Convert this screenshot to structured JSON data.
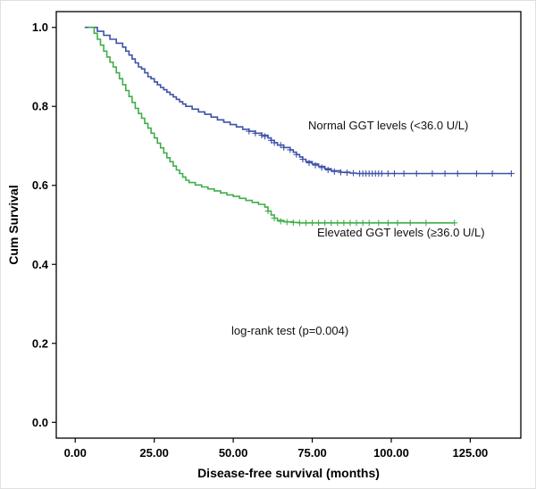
{
  "chart_data": {
    "type": "line",
    "subtype": "kaplan_meier_step",
    "title": "",
    "xlabel": "Disease-free survival (months)",
    "ylabel": "Cum Survival",
    "annotation": "log-rank test (p=0.004)",
    "xlim": [
      0,
      140
    ],
    "ylim": [
      0.0,
      1.0
    ],
    "grid": false,
    "legend_position": "inline-labels",
    "xticks": [
      0,
      25,
      50,
      75,
      100,
      125
    ],
    "xtick_labels": [
      "0.00",
      "25.00",
      "50.00",
      "75.00",
      "100.00",
      "125.00"
    ],
    "yticks": [
      0.0,
      0.2,
      0.4,
      0.6,
      0.8,
      1.0
    ],
    "ytick_labels": [
      "0.0",
      "0.2",
      "0.4",
      "0.6",
      "0.8",
      "1.0"
    ],
    "series": [
      {
        "id": "normal-ggt",
        "name": "Normal GGT levels (<36.0 U/L)",
        "color": "#3c52a8",
        "steps": [
          [
            3,
            1.0
          ],
          [
            7,
            0.99
          ],
          [
            9,
            0.98
          ],
          [
            11,
            0.97
          ],
          [
            13,
            0.96
          ],
          [
            15,
            0.95
          ],
          [
            16,
            0.94
          ],
          [
            17,
            0.93
          ],
          [
            18,
            0.92
          ],
          [
            19,
            0.91
          ],
          [
            20,
            0.9
          ],
          [
            21,
            0.895
          ],
          [
            22,
            0.885
          ],
          [
            23,
            0.875
          ],
          [
            24,
            0.87
          ],
          [
            25,
            0.862
          ],
          [
            26,
            0.855
          ],
          [
            27,
            0.848
          ],
          [
            28,
            0.842
          ],
          [
            29,
            0.836
          ],
          [
            30,
            0.83
          ],
          [
            31,
            0.824
          ],
          [
            32,
            0.818
          ],
          [
            33,
            0.812
          ],
          [
            34,
            0.806
          ],
          [
            35,
            0.8
          ],
          [
            37,
            0.793
          ],
          [
            39,
            0.786
          ],
          [
            41,
            0.78
          ],
          [
            43,
            0.773
          ],
          [
            45,
            0.766
          ],
          [
            47,
            0.76
          ],
          [
            49,
            0.754
          ],
          [
            51,
            0.748
          ],
          [
            53,
            0.742
          ],
          [
            55,
            0.737
          ],
          [
            57,
            0.732
          ],
          [
            59,
            0.727
          ],
          [
            61,
            0.72
          ],
          [
            62,
            0.714
          ],
          [
            63,
            0.708
          ],
          [
            64,
            0.702
          ],
          [
            66,
            0.696
          ],
          [
            68,
            0.69
          ],
          [
            69,
            0.684
          ],
          [
            70,
            0.678
          ],
          [
            71,
            0.672
          ],
          [
            72,
            0.666
          ],
          [
            73,
            0.66
          ],
          [
            75,
            0.654
          ],
          [
            77,
            0.648
          ],
          [
            79,
            0.642
          ],
          [
            81,
            0.637
          ],
          [
            84,
            0.633
          ],
          [
            87,
            0.631
          ],
          [
            89,
            0.63
          ],
          [
            138,
            0.63
          ]
        ],
        "censors": [
          [
            55,
            0.737
          ],
          [
            57,
            0.732
          ],
          [
            59,
            0.727
          ],
          [
            60,
            0.724
          ],
          [
            62,
            0.714
          ],
          [
            63,
            0.708
          ],
          [
            65,
            0.702
          ],
          [
            66,
            0.696
          ],
          [
            68,
            0.69
          ],
          [
            70,
            0.678
          ],
          [
            72,
            0.666
          ],
          [
            74,
            0.657
          ],
          [
            76,
            0.651
          ],
          [
            78,
            0.645
          ],
          [
            80,
            0.639
          ],
          [
            82,
            0.635
          ],
          [
            84,
            0.633
          ],
          [
            86,
            0.632
          ],
          [
            88,
            0.631
          ],
          [
            90,
            0.63
          ],
          [
            91,
            0.63
          ],
          [
            92,
            0.63
          ],
          [
            93,
            0.63
          ],
          [
            94,
            0.63
          ],
          [
            95,
            0.63
          ],
          [
            96,
            0.63
          ],
          [
            97,
            0.63
          ],
          [
            99,
            0.63
          ],
          [
            101,
            0.63
          ],
          [
            104,
            0.63
          ],
          [
            108,
            0.63
          ],
          [
            113,
            0.63
          ],
          [
            117,
            0.63
          ],
          [
            121,
            0.63
          ],
          [
            127,
            0.63
          ],
          [
            132,
            0.63
          ],
          [
            138,
            0.63
          ]
        ]
      },
      {
        "id": "elevated-ggt",
        "name": "Elevated GGT levels (≥36.0 U/L)",
        "color": "#3fae49",
        "steps": [
          [
            4,
            1.0
          ],
          [
            6,
            0.985
          ],
          [
            7,
            0.97
          ],
          [
            8,
            0.955
          ],
          [
            9,
            0.94
          ],
          [
            10,
            0.925
          ],
          [
            11,
            0.912
          ],
          [
            12,
            0.9
          ],
          [
            13,
            0.885
          ],
          [
            14,
            0.87
          ],
          [
            15,
            0.855
          ],
          [
            16,
            0.84
          ],
          [
            17,
            0.825
          ],
          [
            18,
            0.81
          ],
          [
            19,
            0.795
          ],
          [
            20,
            0.782
          ],
          [
            21,
            0.77
          ],
          [
            22,
            0.757
          ],
          [
            23,
            0.745
          ],
          [
            24,
            0.732
          ],
          [
            25,
            0.72
          ],
          [
            26,
            0.707
          ],
          [
            27,
            0.695
          ],
          [
            28,
            0.682
          ],
          [
            29,
            0.67
          ],
          [
            30,
            0.66
          ],
          [
            31,
            0.649
          ],
          [
            32,
            0.639
          ],
          [
            33,
            0.63
          ],
          [
            34,
            0.621
          ],
          [
            35,
            0.613
          ],
          [
            36,
            0.607
          ],
          [
            38,
            0.601
          ],
          [
            40,
            0.596
          ],
          [
            42,
            0.591
          ],
          [
            44,
            0.586
          ],
          [
            46,
            0.581
          ],
          [
            48,
            0.576
          ],
          [
            50,
            0.572
          ],
          [
            52,
            0.567
          ],
          [
            54,
            0.562
          ],
          [
            56,
            0.557
          ],
          [
            58,
            0.552
          ],
          [
            60,
            0.545
          ],
          [
            61,
            0.535
          ],
          [
            62,
            0.525
          ],
          [
            63,
            0.517
          ],
          [
            64,
            0.511
          ],
          [
            66,
            0.508
          ],
          [
            69,
            0.506
          ],
          [
            71,
            0.505
          ],
          [
            120,
            0.505
          ]
        ],
        "censors": [
          [
            61,
            0.535
          ],
          [
            63,
            0.517
          ],
          [
            65,
            0.509
          ],
          [
            67,
            0.507
          ],
          [
            69,
            0.506
          ],
          [
            71,
            0.505
          ],
          [
            73,
            0.505
          ],
          [
            75,
            0.505
          ],
          [
            77,
            0.505
          ],
          [
            79,
            0.505
          ],
          [
            81,
            0.505
          ],
          [
            83,
            0.505
          ],
          [
            85,
            0.505
          ],
          [
            87,
            0.505
          ],
          [
            89,
            0.505
          ],
          [
            91,
            0.505
          ],
          [
            93,
            0.505
          ],
          [
            96,
            0.505
          ],
          [
            99,
            0.505
          ],
          [
            102,
            0.505
          ],
          [
            106,
            0.505
          ],
          [
            111,
            0.505
          ],
          [
            120,
            0.505
          ]
        ]
      }
    ]
  }
}
